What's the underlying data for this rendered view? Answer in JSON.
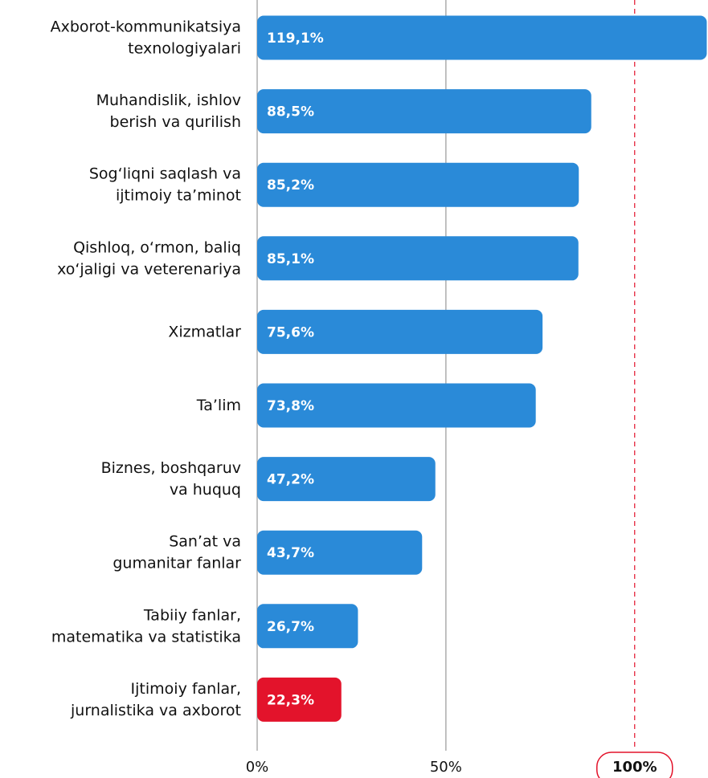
{
  "chart_data": {
    "type": "barh",
    "categories": [
      [
        "Axborot-kommunikatsiya",
        "texnologiyalari"
      ],
      [
        "Muhandislik, ishlov",
        "berish va qurilish"
      ],
      [
        "Sog‘liqni saqlash va",
        "ijtimoiy ta’minot"
      ],
      [
        "Qishloq, o‘rmon, baliq",
        "xo‘jaligi va veterenariya"
      ],
      [
        "Xizmatlar"
      ],
      [
        "Ta’lim"
      ],
      [
        "Biznes, boshqaruv",
        "va huquq"
      ],
      [
        "San’at va",
        "gumanitar fanlar"
      ],
      [
        "Tabiiy fanlar,",
        "matematika va statistika"
      ],
      [
        "Ijtimoiy fanlar,",
        "jurnalistika va axborot"
      ]
    ],
    "values": [
      119.1,
      88.5,
      85.2,
      85.1,
      75.6,
      73.8,
      47.2,
      43.7,
      26.7,
      22.3
    ],
    "value_labels": [
      "119,1%",
      "88,5%",
      "85,2%",
      "85,1%",
      "75,6%",
      "73,8%",
      "47,2%",
      "43,7%",
      "26,7%",
      "22,3%"
    ],
    "colors": [
      "#2a8ad8",
      "#2a8ad8",
      "#2a8ad8",
      "#2a8ad8",
      "#2a8ad8",
      "#2a8ad8",
      "#2a8ad8",
      "#2a8ad8",
      "#2a8ad8",
      "#e3132b"
    ],
    "xlim": [
      0,
      119
    ],
    "xticks": [
      {
        "value": 0,
        "label": "0%"
      },
      {
        "value": 50,
        "label": "50%"
      },
      {
        "value": 100,
        "label": "100%"
      }
    ],
    "grid": true
  }
}
